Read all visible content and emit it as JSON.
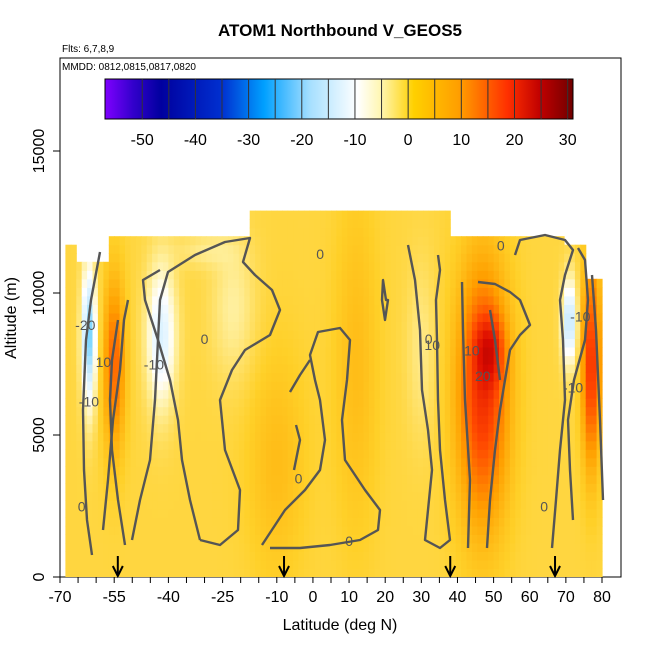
{
  "chart_data": {
    "type": "heatmap",
    "title": "ATOM1 Northbound V_GEOS5",
    "flights_note": "Flts: 6,7,8,9",
    "dates_note": "MMDD: 0812,0815,0817,0820",
    "xlabel": "Latitude (deg N)",
    "ylabel": "Altitude (m)",
    "xlim": [
      -70,
      82
    ],
    "ylim": [
      0,
      17500
    ],
    "x_tick_labels": [
      -70,
      -55,
      -40,
      -25,
      -10,
      0,
      10,
      20,
      30,
      40,
      50,
      60,
      70,
      80
    ],
    "y_tick_labels": [
      0,
      5000,
      10000,
      15000
    ],
    "colorbar": {
      "range": [
        -57,
        31
      ],
      "tick_labels": [
        -50,
        -40,
        -30,
        -20,
        -10,
        0,
        10,
        20,
        30
      ],
      "colors": [
        "#7f00ff",
        "#00009f",
        "#0060ff",
        "#00c8ff",
        "#ffffff",
        "#fff0a0",
        "#ffd000",
        "#ff9000",
        "#ff3000",
        "#a00000",
        "#7a0000"
      ]
    },
    "arrow_latitudes": [
      -54,
      -8,
      38,
      67
    ],
    "contour_labels": [
      {
        "text": "0",
        "x": -30,
        "y": 8200
      },
      {
        "text": "0",
        "x": 52,
        "y": 11500
      },
      {
        "text": "0",
        "x": 32,
        "y": 8200
      },
      {
        "text": "0",
        "x": 2,
        "y": 11200
      },
      {
        "text": "0",
        "x": -4,
        "y": 3300
      },
      {
        "text": "0",
        "x": 10,
        "y": 1100
      },
      {
        "text": "0",
        "x": -64,
        "y": 2300
      },
      {
        "text": "0",
        "x": 64,
        "y": 2300
      },
      {
        "text": "-10",
        "x": -44,
        "y": 7300
      },
      {
        "text": "-10",
        "x": -62,
        "y": 6000
      },
      {
        "text": "-10",
        "x": 72,
        "y": 6500
      },
      {
        "text": "10",
        "x": -58,
        "y": 7400
      },
      {
        "text": "10",
        "x": 44,
        "y": 7800
      },
      {
        "text": "10",
        "x": 33,
        "y": 8000
      },
      {
        "text": "20",
        "x": 47,
        "y": 6900
      },
      {
        "text": "-20",
        "x": -63,
        "y": 8700
      },
      {
        "text": "-10",
        "x": 74,
        "y": 9000
      }
    ],
    "grid": false,
    "legend": "colorbar top"
  }
}
